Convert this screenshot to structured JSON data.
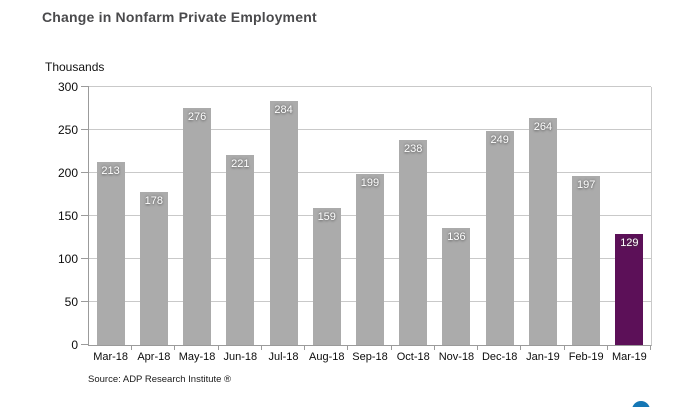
{
  "page": {
    "title": "Change in Nonfarm Private Employment",
    "source": "Source: ADP Research Institute ®"
  },
  "chart_data": {
    "type": "bar",
    "title": "Change in Nonfarm Private Employment",
    "unit_label": "Thousands",
    "categories": [
      "Mar-18",
      "Apr-18",
      "May-18",
      "Jun-18",
      "Jul-18",
      "Aug-18",
      "Sep-18",
      "Oct-18",
      "Nov-18",
      "Dec-18",
      "Jan-19",
      "Feb-19",
      "Mar-19"
    ],
    "values": [
      213,
      178,
      276,
      221,
      284,
      159,
      199,
      238,
      136,
      249,
      264,
      197,
      129
    ],
    "value_labels_shown": true,
    "xlabel": "",
    "ylabel": "Thousands",
    "ylim": [
      0,
      300
    ],
    "yticks": [
      0,
      50,
      100,
      150,
      200,
      250,
      300
    ],
    "grid": true,
    "legend": "none",
    "bar_color": "#ababab",
    "highlight_color": "#5c1058",
    "highlight_index": 12
  },
  "colors": {
    "title": "#4a4a4c",
    "axis": "#9b9b9b",
    "gridline": "#c9c9c9",
    "bar": "#ababab",
    "highlight": "#5c1058",
    "chat_bubble": "#1577b5"
  }
}
